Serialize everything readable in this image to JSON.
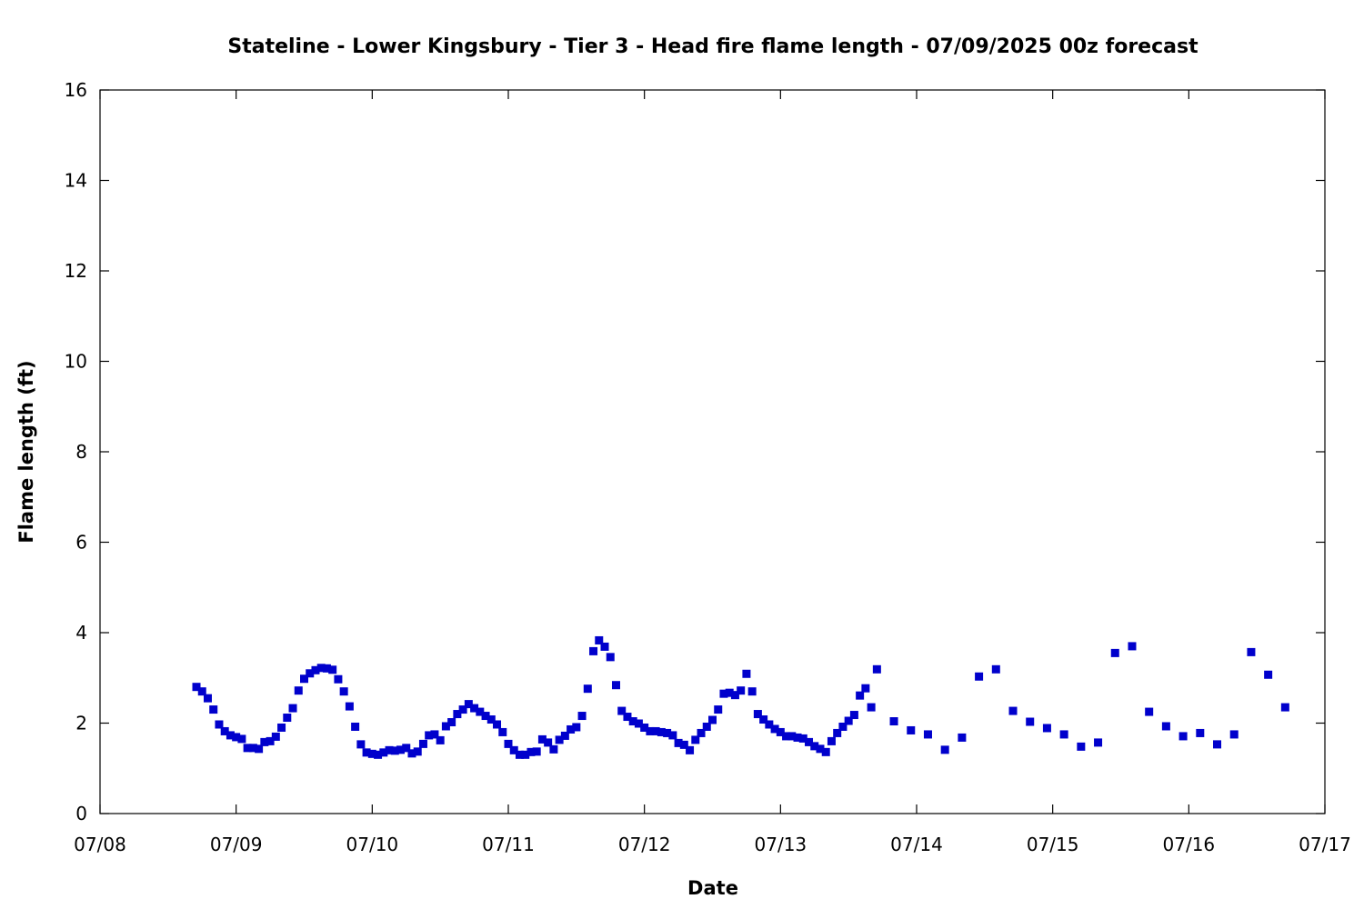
{
  "chart_data": {
    "type": "scatter",
    "title": "Stateline - Lower Kingsbury - Tier 3 - Head fire flame length - 07/09/2025 00z forecast",
    "xlabel": "Date",
    "ylabel": "Flame length (ft)",
    "xlim": [
      "07/08",
      "07/17"
    ],
    "ylim": [
      0,
      16
    ],
    "x_tick_labels": [
      "07/08",
      "07/09",
      "07/10",
      "07/11",
      "07/12",
      "07/13",
      "07/14",
      "07/15",
      "07/16",
      "07/17"
    ],
    "y_tick_labels": [
      "0",
      "2",
      "4",
      "6",
      "8",
      "10",
      "12",
      "14",
      "16"
    ],
    "grid": false,
    "legend": "none",
    "marker_color": "#0000cc",
    "series": [
      {
        "x": [
          "07/08 17:00",
          "07/08 18:00",
          "07/08 19:00",
          "07/08 20:00",
          "07/08 21:00",
          "07/08 22:00",
          "07/08 23:00",
          "07/09 00:00",
          "07/09 01:00",
          "07/09 02:00",
          "07/09 03:00",
          "07/09 04:00",
          "07/09 05:00",
          "07/09 06:00",
          "07/09 07:00",
          "07/09 08:00",
          "07/09 09:00",
          "07/09 10:00",
          "07/09 11:00",
          "07/09 12:00",
          "07/09 13:00",
          "07/09 14:00",
          "07/09 15:00",
          "07/09 16:00",
          "07/09 17:00",
          "07/09 18:00",
          "07/09 19:00",
          "07/09 20:00",
          "07/09 21:00",
          "07/09 22:00",
          "07/09 23:00",
          "07/10 00:00",
          "07/10 01:00",
          "07/10 02:00",
          "07/10 03:00",
          "07/10 04:00",
          "07/10 05:00",
          "07/10 06:00",
          "07/10 07:00",
          "07/10 08:00",
          "07/10 09:00",
          "07/10 10:00",
          "07/10 11:00",
          "07/10 12:00",
          "07/10 13:00",
          "07/10 14:00",
          "07/10 15:00",
          "07/10 16:00",
          "07/10 17:00",
          "07/10 18:00",
          "07/10 19:00",
          "07/10 20:00",
          "07/10 21:00",
          "07/10 22:00",
          "07/10 23:00",
          "07/11 00:00",
          "07/11 01:00",
          "07/11 02:00",
          "07/11 03:00",
          "07/11 04:00",
          "07/11 05:00",
          "07/11 06:00",
          "07/11 07:00",
          "07/11 08:00",
          "07/11 09:00",
          "07/11 10:00",
          "07/11 11:00",
          "07/11 12:00",
          "07/11 13:00",
          "07/11 14:00",
          "07/11 15:00",
          "07/11 16:00",
          "07/11 17:00",
          "07/11 18:00",
          "07/11 19:00",
          "07/11 20:00",
          "07/11 21:00",
          "07/11 22:00",
          "07/11 23:00",
          "07/12 00:00",
          "07/12 01:00",
          "07/12 02:00",
          "07/12 03:00",
          "07/12 04:00",
          "07/12 05:00",
          "07/12 06:00",
          "07/12 07:00",
          "07/12 08:00",
          "07/12 09:00",
          "07/12 10:00",
          "07/12 11:00",
          "07/12 12:00",
          "07/12 13:00",
          "07/12 14:00",
          "07/12 15:00",
          "07/12 16:00",
          "07/12 17:00",
          "07/12 18:00",
          "07/12 19:00",
          "07/12 20:00",
          "07/12 21:00",
          "07/12 22:00",
          "07/12 23:00",
          "07/13 00:00",
          "07/13 01:00",
          "07/13 02:00",
          "07/13 03:00",
          "07/13 04:00",
          "07/13 05:00",
          "07/13 06:00",
          "07/13 07:00",
          "07/13 08:00",
          "07/13 09:00",
          "07/13 10:00",
          "07/13 11:00",
          "07/13 12:00",
          "07/13 13:00",
          "07/13 14:00",
          "07/13 15:00",
          "07/13 16:00",
          "07/13 17:00",
          "07/13 20:00",
          "07/13 23:00",
          "07/14 02:00",
          "07/14 05:00",
          "07/14 08:00",
          "07/14 11:00",
          "07/14 14:00",
          "07/14 17:00",
          "07/14 20:00",
          "07/14 23:00",
          "07/15 02:00",
          "07/15 05:00",
          "07/15 08:00",
          "07/15 11:00",
          "07/15 14:00",
          "07/15 17:00",
          "07/15 20:00",
          "07/15 23:00",
          "07/16 02:00",
          "07/16 05:00",
          "07/16 08:00",
          "07/16 11:00",
          "07/16 14:00",
          "07/16 17:00"
        ],
        "y": [
          2.8,
          2.7,
          2.55,
          2.3,
          1.97,
          1.82,
          1.73,
          1.69,
          1.65,
          1.45,
          1.45,
          1.43,
          1.58,
          1.6,
          1.7,
          1.9,
          2.12,
          2.33,
          2.72,
          2.98,
          3.1,
          3.17,
          3.22,
          3.21,
          3.18,
          2.97,
          2.7,
          2.37,
          1.92,
          1.53,
          1.35,
          1.32,
          1.3,
          1.35,
          1.4,
          1.39,
          1.41,
          1.45,
          1.33,
          1.37,
          1.54,
          1.73,
          1.75,
          1.62,
          1.93,
          2.02,
          2.2,
          2.3,
          2.42,
          2.33,
          2.25,
          2.16,
          2.08,
          1.97,
          1.8,
          1.54,
          1.4,
          1.3,
          1.3,
          1.36,
          1.37,
          1.64,
          1.57,
          1.42,
          1.63,
          1.72,
          1.86,
          1.91,
          2.16,
          2.76,
          3.59,
          3.83,
          3.69,
          3.46,
          2.84,
          2.27,
          2.14,
          2.04,
          1.99,
          1.9,
          1.82,
          1.82,
          1.8,
          1.78,
          1.73,
          1.56,
          1.52,
          1.4,
          1.63,
          1.78,
          1.92,
          2.07,
          2.3,
          2.65,
          2.67,
          2.62,
          2.72,
          3.09,
          2.7,
          2.2,
          2.08,
          1.97,
          1.87,
          1.8,
          1.71,
          1.71,
          1.68,
          1.66,
          1.58,
          1.49,
          1.43,
          1.36,
          1.6,
          1.78,
          1.92,
          2.05,
          2.18,
          2.61,
          2.77,
          2.35,
          3.19,
          2.04,
          1.84,
          1.75,
          1.41,
          1.68,
          3.03,
          3.19,
          2.27,
          2.03,
          1.89,
          1.75,
          1.48,
          1.57,
          3.55,
          3.7,
          2.25,
          1.93,
          1.71,
          1.78,
          1.53,
          1.75,
          3.57,
          3.07,
          2.35
        ]
      }
    ]
  }
}
